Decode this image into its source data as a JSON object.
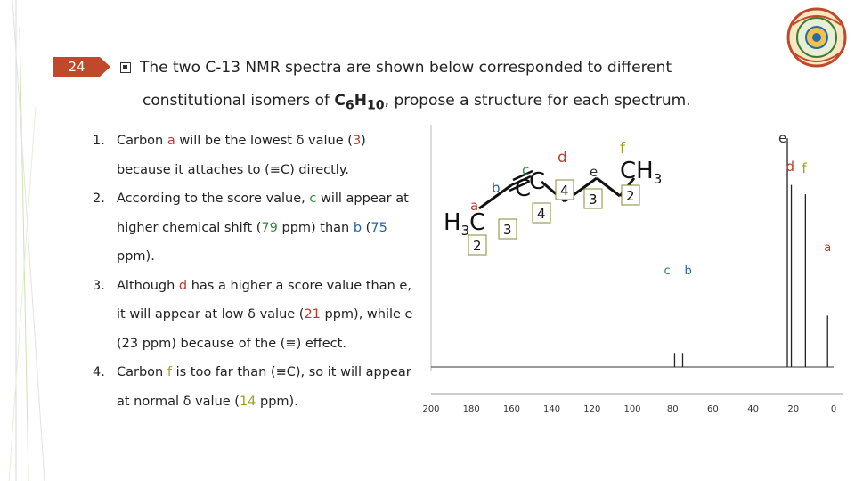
{
  "slide_number": "24",
  "heading": {
    "line1": "The two C-13 NMR spectra are shown below corresponded to different",
    "line2_pre": "constitutional isomers of ",
    "formula_c": "C",
    "formula_c_sub": "6",
    "formula_h": "H",
    "formula_h_sub": "10",
    "line2_post": ", propose a structure for each spectrum."
  },
  "notes": [
    {
      "num": "1.",
      "parts": [
        {
          "t": "Carbon "
        },
        {
          "t": "a",
          "c": "red"
        },
        {
          "t": " will be the lowest δ value ("
        },
        {
          "t": "3",
          "c": "red"
        },
        {
          "t": ") because it attaches to (≡C) directly."
        }
      ]
    },
    {
      "num": "2.",
      "parts": [
        {
          "t": "According to the score value, "
        },
        {
          "t": "c",
          "c": "green"
        },
        {
          "t": " will appear at higher chemical shift ("
        },
        {
          "t": "79",
          "c": "green"
        },
        {
          "t": " ppm) than "
        },
        {
          "t": "b",
          "c": "blue"
        },
        {
          "t": " ("
        },
        {
          "t": "75",
          "c": "blue"
        },
        {
          "t": " ppm)."
        }
      ]
    },
    {
      "num": "3.",
      "parts": [
        {
          "t": "Although "
        },
        {
          "t": "d",
          "c": "red"
        },
        {
          "t": " has a higher a score value than e, it will appear at low δ value ("
        },
        {
          "t": "21",
          "c": "red"
        },
        {
          "t": " ppm), while e (23 ppm) because of the (≡) effect."
        }
      ]
    },
    {
      "num": "4.",
      "parts": [
        {
          "t": "Carbon "
        },
        {
          "t": "f",
          "c": "olive"
        },
        {
          "t": " is too far than (≡C), so it will appear at normal δ value ("
        },
        {
          "t": "14",
          "c": "olive"
        },
        {
          "t": " ppm)."
        }
      ]
    }
  ],
  "structure": {
    "h3c_left": "H",
    "h3c_sub": "3",
    "h3c_c": "C",
    "c1": "C",
    "c2": "C",
    "ch3_c": "CH",
    "ch3_sub": "3",
    "labels": {
      "a": "a",
      "b": "b",
      "c": "c",
      "d": "d",
      "e": "e",
      "f": "f"
    },
    "scores": {
      "a": "2",
      "b": "3",
      "c": "4",
      "d": "4",
      "e": "3",
      "f": "2"
    }
  },
  "colors": {
    "accent": "#c0482b",
    "label_red": "#c0392b",
    "label_blue": "#2563a8",
    "label_green": "#2e8b3e",
    "label_olive": "#a0a020"
  },
  "chart_data": {
    "type": "line",
    "title": "",
    "xlabel": "",
    "ylabel": "",
    "x_ticks": [
      "200",
      "180",
      "160",
      "140",
      "120",
      "100",
      "80",
      "60",
      "40",
      "20",
      "0"
    ],
    "xlim": [
      200,
      0
    ],
    "ylim": [
      0,
      1
    ],
    "peaks": [
      {
        "label": "c",
        "x": 79,
        "height": 0.06
      },
      {
        "label": "b",
        "x": 75,
        "height": 0.06
      },
      {
        "label": "e",
        "x": 23,
        "height": 0.98
      },
      {
        "label": "d",
        "x": 21,
        "height": 0.78
      },
      {
        "label": "f",
        "x": 14,
        "height": 0.74
      },
      {
        "label": "a",
        "x": 3,
        "height": 0.22
      }
    ]
  }
}
